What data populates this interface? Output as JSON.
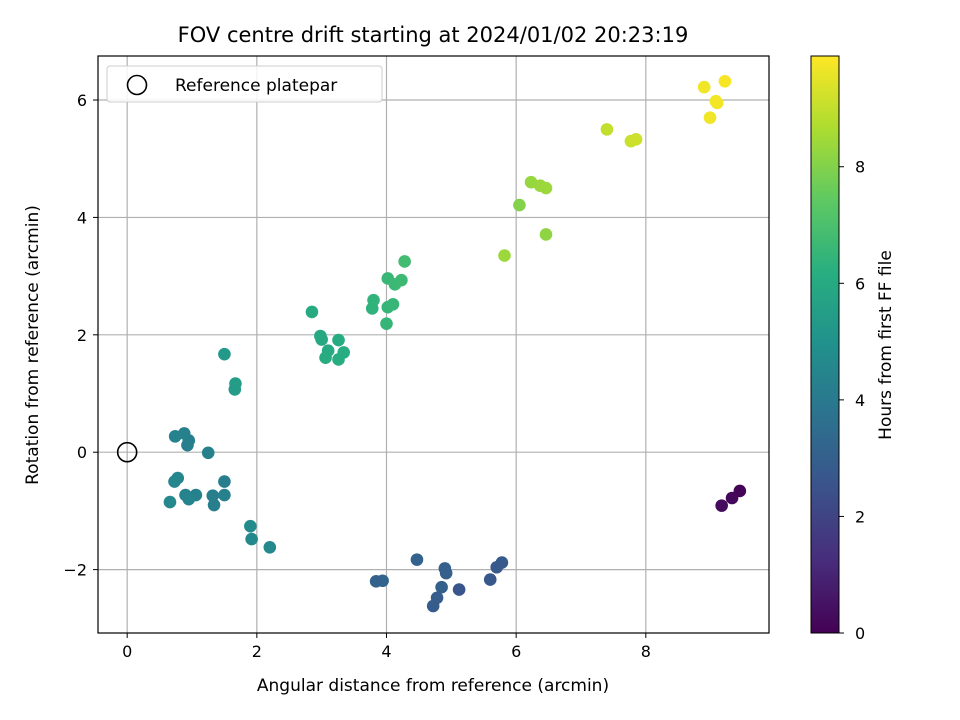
{
  "chart_data": {
    "type": "scatter",
    "title": "FOV centre drift starting at 2024/01/02 20:23:19",
    "xlabel": "Angular distance from reference (arcmin)",
    "ylabel": "Rotation from reference (arcmin)",
    "xlim": [
      -0.45,
      9.9
    ],
    "ylim": [
      -3.08,
      6.75
    ],
    "xticks": [
      0,
      2,
      4,
      6,
      8
    ],
    "yticks": [
      -2,
      0,
      2,
      4,
      6
    ],
    "xtick_labels": [
      "0",
      "2",
      "4",
      "6",
      "8"
    ],
    "ytick_labels": [
      "−2",
      "0",
      "2",
      "4",
      "6"
    ],
    "grid": true,
    "legend": {
      "placement": "top-left",
      "entries": [
        "Reference platepar"
      ]
    },
    "reference_point": {
      "x": 0,
      "y": 0,
      "label": "Reference platepar"
    },
    "colorbar": {
      "label": "Hours from first FF file",
      "colormap": "viridis",
      "range": [
        0,
        9.9
      ],
      "ticks": [
        0,
        2,
        4,
        6,
        8
      ],
      "tick_labels": [
        "0",
        "2",
        "4",
        "6",
        "8"
      ]
    },
    "points": [
      {
        "x": 9.45,
        "y": -0.66,
        "h": 0.1
      },
      {
        "x": 9.33,
        "y": -0.78,
        "h": 0.2
      },
      {
        "x": 9.17,
        "y": -0.91,
        "h": 0.3
      },
      {
        "x": 5.78,
        "y": -1.88,
        "h": 2.8
      },
      {
        "x": 5.7,
        "y": -1.96,
        "h": 2.75
      },
      {
        "x": 5.6,
        "y": -2.17,
        "h": 2.7
      },
      {
        "x": 5.12,
        "y": -2.34,
        "h": 2.6
      },
      {
        "x": 4.9,
        "y": -1.98,
        "h": 3.0
      },
      {
        "x": 4.92,
        "y": -2.06,
        "h": 3.0
      },
      {
        "x": 4.85,
        "y": -2.3,
        "h": 3.05
      },
      {
        "x": 4.78,
        "y": -2.48,
        "h": 2.9
      },
      {
        "x": 4.72,
        "y": -2.62,
        "h": 2.85
      },
      {
        "x": 4.47,
        "y": -1.83,
        "h": 3.1
      },
      {
        "x": 3.94,
        "y": -2.19,
        "h": 3.2
      },
      {
        "x": 3.84,
        "y": -2.2,
        "h": 3.15
      },
      {
        "x": 2.2,
        "y": -1.62,
        "h": 4.6
      },
      {
        "x": 1.9,
        "y": -1.26,
        "h": 4.7
      },
      {
        "x": 1.92,
        "y": -1.48,
        "h": 4.65
      },
      {
        "x": 1.5,
        "y": -0.5,
        "h": 4.2
      },
      {
        "x": 1.5,
        "y": -0.73,
        "h": 4.3
      },
      {
        "x": 1.32,
        "y": -0.74,
        "h": 4.2
      },
      {
        "x": 1.34,
        "y": -0.9,
        "h": 4.25
      },
      {
        "x": 1.25,
        "y": -0.01,
        "h": 4.3
      },
      {
        "x": 1.06,
        "y": -0.73,
        "h": 4.3
      },
      {
        "x": 0.93,
        "y": 0.12,
        "h": 4.2
      },
      {
        "x": 0.95,
        "y": 0.2,
        "h": 4.25
      },
      {
        "x": 0.88,
        "y": 0.32,
        "h": 4.3
      },
      {
        "x": 0.74,
        "y": 0.27,
        "h": 4.4
      },
      {
        "x": 0.9,
        "y": -0.73,
        "h": 4.4
      },
      {
        "x": 0.95,
        "y": -0.8,
        "h": 4.45
      },
      {
        "x": 0.78,
        "y": -0.44,
        "h": 4.5
      },
      {
        "x": 0.73,
        "y": -0.5,
        "h": 4.55
      },
      {
        "x": 0.66,
        "y": -0.85,
        "h": 4.6
      },
      {
        "x": 1.5,
        "y": 1.67,
        "h": 5.3
      },
      {
        "x": 1.67,
        "y": 1.17,
        "h": 5.45
      },
      {
        "x": 1.66,
        "y": 1.07,
        "h": 5.4
      },
      {
        "x": 2.85,
        "y": 2.39,
        "h": 6.0
      },
      {
        "x": 2.98,
        "y": 1.98,
        "h": 5.95
      },
      {
        "x": 3.0,
        "y": 1.92,
        "h": 5.95
      },
      {
        "x": 3.1,
        "y": 1.73,
        "h": 6.0
      },
      {
        "x": 3.06,
        "y": 1.61,
        "h": 6.05
      },
      {
        "x": 3.26,
        "y": 1.91,
        "h": 6.05
      },
      {
        "x": 3.26,
        "y": 1.58,
        "h": 6.1
      },
      {
        "x": 3.34,
        "y": 1.7,
        "h": 6.1
      },
      {
        "x": 3.78,
        "y": 2.45,
        "h": 6.35
      },
      {
        "x": 3.8,
        "y": 2.59,
        "h": 6.4
      },
      {
        "x": 4.0,
        "y": 2.19,
        "h": 6.5
      },
      {
        "x": 4.02,
        "y": 2.47,
        "h": 6.5
      },
      {
        "x": 4.1,
        "y": 2.52,
        "h": 6.55
      },
      {
        "x": 4.02,
        "y": 2.96,
        "h": 6.6
      },
      {
        "x": 4.13,
        "y": 2.86,
        "h": 6.65
      },
      {
        "x": 4.23,
        "y": 2.93,
        "h": 6.7
      },
      {
        "x": 4.28,
        "y": 3.25,
        "h": 6.8
      },
      {
        "x": 5.82,
        "y": 3.35,
        "h": 8.4
      },
      {
        "x": 6.05,
        "y": 4.21,
        "h": 8.0
      },
      {
        "x": 6.23,
        "y": 4.6,
        "h": 8.3
      },
      {
        "x": 6.37,
        "y": 4.54,
        "h": 8.35
      },
      {
        "x": 6.46,
        "y": 4.5,
        "h": 8.4
      },
      {
        "x": 6.46,
        "y": 3.71,
        "h": 8.2
      },
      {
        "x": 7.4,
        "y": 5.5,
        "h": 9.0
      },
      {
        "x": 7.77,
        "y": 5.3,
        "h": 9.1
      },
      {
        "x": 7.85,
        "y": 5.33,
        "h": 9.15
      },
      {
        "x": 8.9,
        "y": 6.22,
        "h": 9.7
      },
      {
        "x": 9.22,
        "y": 6.32,
        "h": 9.8
      },
      {
        "x": 9.08,
        "y": 5.98,
        "h": 9.75
      },
      {
        "x": 9.1,
        "y": 5.95,
        "h": 9.75
      },
      {
        "x": 8.99,
        "y": 5.7,
        "h": 9.7
      }
    ]
  }
}
